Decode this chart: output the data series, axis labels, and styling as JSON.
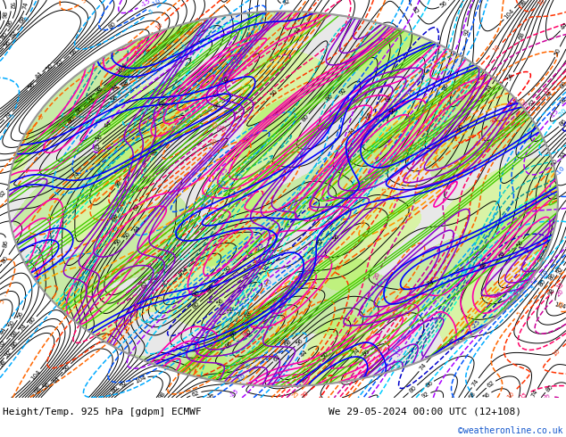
{
  "title_left": "Height/Temp. 925 hPa [gdpm] ECMWF",
  "title_right": "We 29-05-2024 00:00 UTC (12+108)",
  "credit": "©weatheronline.co.uk",
  "background_color": "#ffffff",
  "map_bg": "#e8e8e8",
  "map_ocean": "#ddeeff",
  "fig_width": 6.34,
  "fig_height": 4.9,
  "dpi": 100,
  "map_edge_color": "#aaaaaa",
  "contour_color": "#000000",
  "yellow_green": "#aaff44"
}
